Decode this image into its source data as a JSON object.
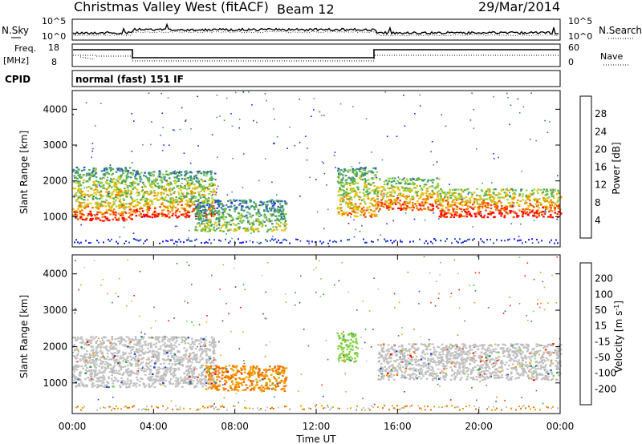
{
  "header": {
    "title": "Christmas Valley West (fitACF)",
    "beam": "Beam 12",
    "date": "29/Mar/2014"
  },
  "noise_panel": {
    "left_label": "N.Sky",
    "right_label": "N.Search",
    "left_ticks": [
      "10^5",
      "10^0"
    ],
    "right_ticks": [
      "10^5",
      "10^0"
    ]
  },
  "freq_panel": {
    "left_label_line1": "Freq.",
    "left_label_line2": "[MHz]",
    "right_label": "Nave",
    "left_ticks": [
      "18",
      "8"
    ],
    "right_ticks": [
      "60",
      "0"
    ]
  },
  "cpid_panel": {
    "label": "CPID",
    "mode_text": "normal (fast) 151 IF"
  },
  "chart_data": [
    {
      "type": "heatmap",
      "name": "power",
      "ylabel": "Slant Range [km]",
      "ylim": [
        180,
        4500
      ],
      "yticks": [
        "1000",
        "2000",
        "3000",
        "4000"
      ],
      "xlim_hours": [
        0,
        24
      ],
      "colorbar_label": "Power [dB]",
      "colorbar_ticks": [
        "28",
        "24",
        "20",
        "16",
        "12",
        "8",
        "4"
      ],
      "colors": [
        "#1a1aff",
        "#2a56c0",
        "#3f8f82",
        "#52b052",
        "#a0d040",
        "#f0c000",
        "#f08000",
        "#f04000",
        "#ff0000"
      ],
      "regions": [
        {
          "t": [
            0,
            3
          ],
          "r": [
            900,
            1600
          ],
          "level": 8
        },
        {
          "t": [
            0,
            3
          ],
          "r": [
            1600,
            2400
          ],
          "level": 5
        },
        {
          "t": [
            3,
            7
          ],
          "r": [
            1000,
            1600
          ],
          "level": 8
        },
        {
          "t": [
            3,
            7
          ],
          "r": [
            1600,
            2300
          ],
          "level": 5
        },
        {
          "t": [
            6,
            10.5
          ],
          "r": [
            600,
            1500
          ],
          "level": 4
        },
        {
          "t": [
            13,
            15
          ],
          "r": [
            1000,
            2400
          ],
          "level": 6
        },
        {
          "t": [
            15,
            18
          ],
          "r": [
            1200,
            2100
          ],
          "level": 7
        },
        {
          "t": [
            18,
            24
          ],
          "r": [
            1000,
            1800
          ],
          "level": 8
        }
      ]
    },
    {
      "type": "heatmap",
      "name": "velocity",
      "ylabel": "Slant Range [km]",
      "ylim": [
        180,
        4500
      ],
      "yticks": [
        "1000",
        "2000",
        "3000",
        "4000"
      ],
      "xlim_hours": [
        0,
        24
      ],
      "colorbar_label": "Velocity [m s^-1]",
      "colorbar_ticks": [
        "200",
        "100",
        "50",
        "15",
        "-15",
        "-50",
        "-100",
        "-200"
      ],
      "colors": [
        "#2040c0",
        "#208080",
        "#20a040",
        "#80d040",
        "#c0c0c0",
        "#f0a000",
        "#f07000",
        "#f03000",
        "#ff0000"
      ],
      "regions": [
        {
          "t": [
            0,
            7
          ],
          "r": [
            900,
            2300
          ],
          "value": 0
        },
        {
          "t": [
            6.5,
            10.5
          ],
          "r": [
            800,
            1500
          ],
          "value": -50
        },
        {
          "t": [
            13,
            14
          ],
          "r": [
            1600,
            2400
          ],
          "value": 60
        },
        {
          "t": [
            15,
            24
          ],
          "r": [
            1100,
            2100
          ],
          "value": 0
        }
      ]
    }
  ],
  "x_axis": {
    "label": "Time UT",
    "ticks": [
      "00:00",
      "04:00",
      "08:00",
      "12:00",
      "16:00",
      "20:00",
      "00:00"
    ]
  }
}
